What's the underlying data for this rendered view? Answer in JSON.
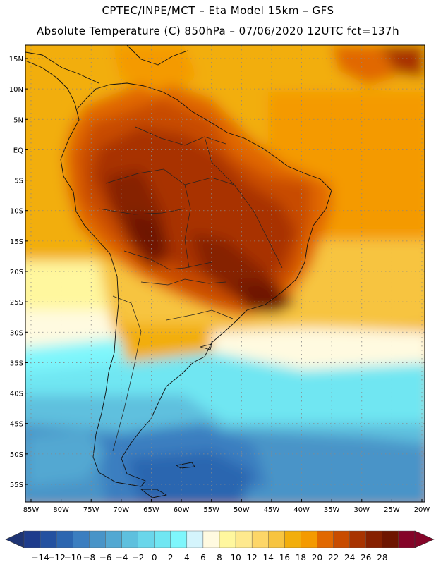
{
  "header": {
    "line1": "CPTEC/INPE/MCT –   Eta Model 15km – GFS",
    "line2": "Absolute Temperature (C) 850hPa – 07/06/2020 12UTC fct=137h"
  },
  "axes": {
    "lat_labels": [
      "15N",
      "10N",
      "5N",
      "EQ",
      "5S",
      "10S",
      "15S",
      "20S",
      "25S",
      "30S",
      "35S",
      "40S",
      "45S",
      "50S",
      "55S"
    ],
    "lon_labels": [
      "85W",
      "80W",
      "75W",
      "70W",
      "65W",
      "60W",
      "55W",
      "50W",
      "45W",
      "40W",
      "35W",
      "30W",
      "25W",
      "20W"
    ]
  },
  "legend": {
    "ticks": [
      "-14",
      "-12",
      "-10",
      "-8",
      "-6",
      "-4",
      "-2",
      "0",
      "2",
      "4",
      "6",
      "8",
      "10",
      "12",
      "14",
      "16",
      "18",
      "20",
      "22",
      "24",
      "26",
      "28"
    ],
    "colors": [
      "#1e3c8c",
      "#2351a0",
      "#2c66b0",
      "#3b7ec0",
      "#4894c8",
      "#52a8d2",
      "#5ec0de",
      "#6ad6ea",
      "#70e6f2",
      "#7ef6fc",
      "#d4f4fc",
      "#fffae0",
      "#fff79e",
      "#fee98e",
      "#fdd668",
      "#f7c440",
      "#f2ae0c",
      "#f49a00",
      "#e16800",
      "#c84c00",
      "#a83300",
      "#862000",
      "#6e1500",
      "#840428"
    ],
    "under_color": "#1e3474",
    "over_color": "#840428"
  }
}
